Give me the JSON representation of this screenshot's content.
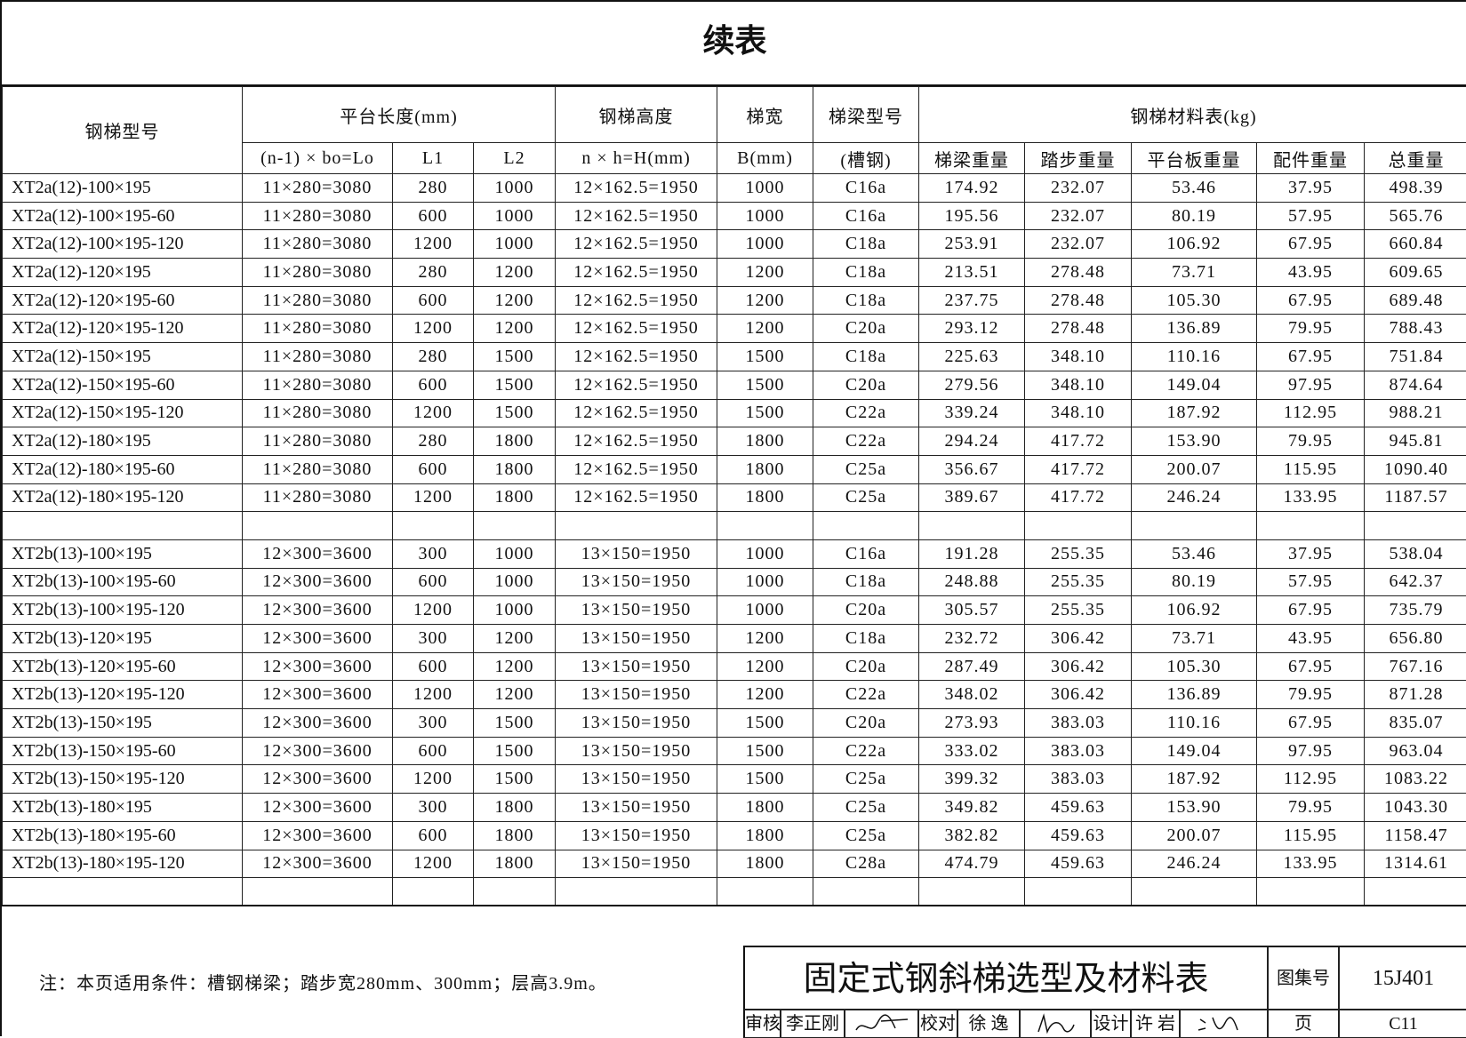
{
  "title": "续表",
  "header": {
    "row1": [
      "钢梯型号",
      "平台长度(mm)",
      "钢梯高度",
      "梯宽",
      "梯梁型号",
      "钢梯材料表(kg)"
    ],
    "row2": [
      "(n-1) × bo=Lo",
      "L1",
      "L2",
      "n × h=H(mm)",
      "B(mm)",
      "(槽钢)",
      "梯梁重量",
      "踏步重量",
      "平台板重量",
      "配件重量",
      "总重量"
    ]
  },
  "groups": [
    {
      "rows": [
        [
          "XT2a(12)-100×195",
          "11×280=3080",
          "280",
          "1000",
          "12×162.5=1950",
          "1000",
          "C16a",
          "174.92",
          "232.07",
          "53.46",
          "37.95",
          "498.39"
        ],
        [
          "XT2a(12)-100×195-60",
          "11×280=3080",
          "600",
          "1000",
          "12×162.5=1950",
          "1000",
          "C16a",
          "195.56",
          "232.07",
          "80.19",
          "57.95",
          "565.76"
        ],
        [
          "XT2a(12)-100×195-120",
          "11×280=3080",
          "1200",
          "1000",
          "12×162.5=1950",
          "1000",
          "C18a",
          "253.91",
          "232.07",
          "106.92",
          "67.95",
          "660.84"
        ],
        [
          "XT2a(12)-120×195",
          "11×280=3080",
          "280",
          "1200",
          "12×162.5=1950",
          "1200",
          "C18a",
          "213.51",
          "278.48",
          "73.71",
          "43.95",
          "609.65"
        ],
        [
          "XT2a(12)-120×195-60",
          "11×280=3080",
          "600",
          "1200",
          "12×162.5=1950",
          "1200",
          "C18a",
          "237.75",
          "278.48",
          "105.30",
          "67.95",
          "689.48"
        ],
        [
          "XT2a(12)-120×195-120",
          "11×280=3080",
          "1200",
          "1200",
          "12×162.5=1950",
          "1200",
          "C20a",
          "293.12",
          "278.48",
          "136.89",
          "79.95",
          "788.43"
        ],
        [
          "XT2a(12)-150×195",
          "11×280=3080",
          "280",
          "1500",
          "12×162.5=1950",
          "1500",
          "C18a",
          "225.63",
          "348.10",
          "110.16",
          "67.95",
          "751.84"
        ],
        [
          "XT2a(12)-150×195-60",
          "11×280=3080",
          "600",
          "1500",
          "12×162.5=1950",
          "1500",
          "C20a",
          "279.56",
          "348.10",
          "149.04",
          "97.95",
          "874.64"
        ],
        [
          "XT2a(12)-150×195-120",
          "11×280=3080",
          "1200",
          "1500",
          "12×162.5=1950",
          "1500",
          "C22a",
          "339.24",
          "348.10",
          "187.92",
          "112.95",
          "988.21"
        ],
        [
          "XT2a(12)-180×195",
          "11×280=3080",
          "280",
          "1800",
          "12×162.5=1950",
          "1800",
          "C22a",
          "294.24",
          "417.72",
          "153.90",
          "79.95",
          "945.81"
        ],
        [
          "XT2a(12)-180×195-60",
          "11×280=3080",
          "600",
          "1800",
          "12×162.5=1950",
          "1800",
          "C25a",
          "356.67",
          "417.72",
          "200.07",
          "115.95",
          "1090.40"
        ],
        [
          "XT2a(12)-180×195-120",
          "11×280=3080",
          "1200",
          "1800",
          "12×162.5=1950",
          "1800",
          "C25a",
          "389.67",
          "417.72",
          "246.24",
          "133.95",
          "1187.57"
        ]
      ]
    },
    {
      "rows": [
        [
          "XT2b(13)-100×195",
          "12×300=3600",
          "300",
          "1000",
          "13×150=1950",
          "1000",
          "C16a",
          "191.28",
          "255.35",
          "53.46",
          "37.95",
          "538.04"
        ],
        [
          "XT2b(13)-100×195-60",
          "12×300=3600",
          "600",
          "1000",
          "13×150=1950",
          "1000",
          "C18a",
          "248.88",
          "255.35",
          "80.19",
          "57.95",
          "642.37"
        ],
        [
          "XT2b(13)-100×195-120",
          "12×300=3600",
          "1200",
          "1000",
          "13×150=1950",
          "1000",
          "C20a",
          "305.57",
          "255.35",
          "106.92",
          "67.95",
          "735.79"
        ],
        [
          "XT2b(13)-120×195",
          "12×300=3600",
          "300",
          "1200",
          "13×150=1950",
          "1200",
          "C18a",
          "232.72",
          "306.42",
          "73.71",
          "43.95",
          "656.80"
        ],
        [
          "XT2b(13)-120×195-60",
          "12×300=3600",
          "600",
          "1200",
          "13×150=1950",
          "1200",
          "C20a",
          "287.49",
          "306.42",
          "105.30",
          "67.95",
          "767.16"
        ],
        [
          "XT2b(13)-120×195-120",
          "12×300=3600",
          "1200",
          "1200",
          "13×150=1950",
          "1200",
          "C22a",
          "348.02",
          "306.42",
          "136.89",
          "79.95",
          "871.28"
        ],
        [
          "XT2b(13)-150×195",
          "12×300=3600",
          "300",
          "1500",
          "13×150=1950",
          "1500",
          "C20a",
          "273.93",
          "383.03",
          "110.16",
          "67.95",
          "835.07"
        ],
        [
          "XT2b(13)-150×195-60",
          "12×300=3600",
          "600",
          "1500",
          "13×150=1950",
          "1500",
          "C22a",
          "333.02",
          "383.03",
          "149.04",
          "97.95",
          "963.04"
        ],
        [
          "XT2b(13)-150×195-120",
          "12×300=3600",
          "1200",
          "1500",
          "13×150=1950",
          "1500",
          "C25a",
          "399.32",
          "383.03",
          "187.92",
          "112.95",
          "1083.22"
        ],
        [
          "XT2b(13)-180×195",
          "12×300=3600",
          "300",
          "1800",
          "13×150=1950",
          "1800",
          "C25a",
          "349.82",
          "459.63",
          "153.90",
          "79.95",
          "1043.30"
        ],
        [
          "XT2b(13)-180×195-60",
          "12×300=3600",
          "600",
          "1800",
          "13×150=1950",
          "1800",
          "C25a",
          "382.82",
          "459.63",
          "200.07",
          "115.95",
          "1158.47"
        ],
        [
          "XT2b(13)-180×195-120",
          "12×300=3600",
          "1200",
          "1800",
          "13×150=1950",
          "1800",
          "C28a",
          "474.79",
          "459.63",
          "246.24",
          "133.95",
          "1314.61"
        ]
      ]
    }
  ],
  "note": "注：本页适用条件：槽钢梯梁；踏步宽280mm、300mm；层高3.9m。",
  "title_block": {
    "title": "固定式钢斜梯选型及材料表",
    "atlas_label": "图集号",
    "atlas_no": "15J401",
    "review_label": "审核",
    "reviewer": "李正刚",
    "check_label": "校对",
    "checker": "徐 逸",
    "design_label": "设计",
    "designer": "许 岩",
    "page_label": "页",
    "page_no": "C11"
  }
}
